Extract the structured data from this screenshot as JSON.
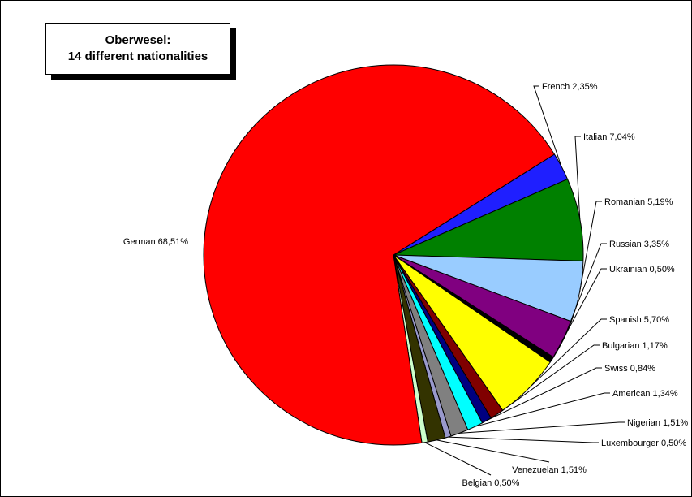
{
  "chart_data": {
    "type": "pie",
    "title": "Oberwesel:",
    "subtitle": "14 different nationalities",
    "slices": [
      {
        "name": "French",
        "label": "French 2,35%",
        "value": 2.35,
        "color": "#1f1fff"
      },
      {
        "name": "Italian",
        "label": "Italian 7,04%",
        "value": 7.04,
        "color": "#008000"
      },
      {
        "name": "Romanian",
        "label": "Romanian 5,19%",
        "value": 5.19,
        "color": "#99ccff"
      },
      {
        "name": "Russian",
        "label": "Russian 3,35%",
        "value": 3.35,
        "color": "#800080"
      },
      {
        "name": "Ukrainian",
        "label": "Ukrainian 0,50%",
        "value": 0.5,
        "color": "#000000"
      },
      {
        "name": "Spanish",
        "label": "Spanish 5,70%",
        "value": 5.7,
        "color": "#ffff00"
      },
      {
        "name": "Bulgarian",
        "label": "Bulgarian 1,17%",
        "value": 1.17,
        "color": "#800000"
      },
      {
        "name": "Swiss",
        "label": "Swiss 0,84%",
        "value": 0.84,
        "color": "#000080"
      },
      {
        "name": "American",
        "label": "American 1,34%",
        "value": 1.34,
        "color": "#00ffff"
      },
      {
        "name": "Nigerian",
        "label": "Nigerian 1,51%",
        "value": 1.51,
        "color": "#808080"
      },
      {
        "name": "Luxembourger",
        "label": "Luxembourger 0,50%",
        "value": 0.5,
        "color": "#9999cc"
      },
      {
        "name": "Venezuelan",
        "label": "Venezuelan 1,51%",
        "value": 1.51,
        "color": "#333300"
      },
      {
        "name": "Belgian",
        "label": "Belgian 0,50%",
        "value": 0.5,
        "color": "#ccffcc"
      },
      {
        "name": "German",
        "label": "German 68,51%",
        "value": 68.51,
        "color": "#ff0000"
      }
    ],
    "legend": "none"
  }
}
